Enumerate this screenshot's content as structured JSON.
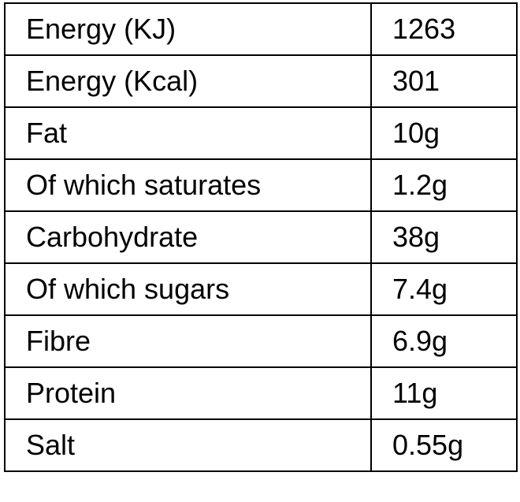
{
  "table": {
    "rows": [
      [
        "Energy (KJ)",
        "1263"
      ],
      [
        "Energy (Kcal)",
        "301"
      ],
      [
        "Fat",
        "10g"
      ],
      [
        "Of which saturates",
        "1.2g"
      ],
      [
        "Carbohydrate",
        "38g"
      ],
      [
        "Of which sugars",
        "7.4g"
      ],
      [
        "Fibre",
        "6.9g"
      ],
      [
        "Protein",
        "11g"
      ],
      [
        "Salt",
        "0.55g"
      ]
    ]
  }
}
